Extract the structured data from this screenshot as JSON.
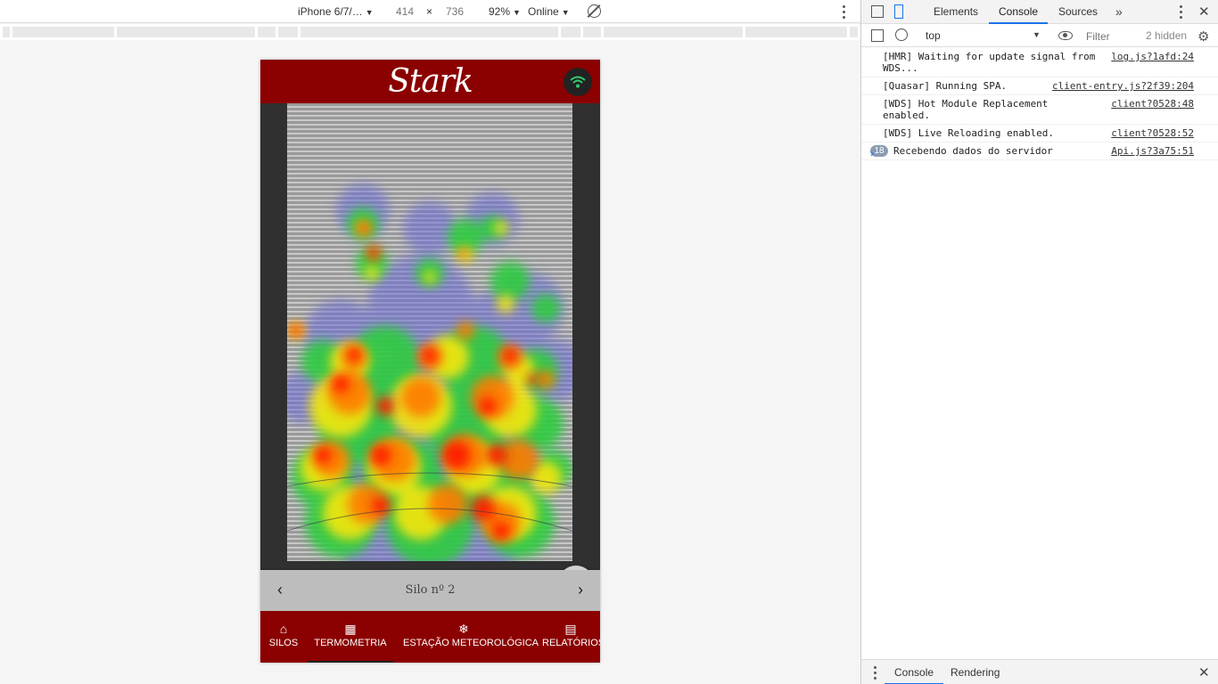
{
  "device_toolbar": {
    "device": "iPhone 6/7/…",
    "width": "414",
    "times": "×",
    "height": "736",
    "zoom": "92%",
    "network": "Online"
  },
  "app": {
    "title": "Stark",
    "silo_label": "Silo nº 2",
    "nav": [
      {
        "icon": "⌂",
        "label": "SILOS"
      },
      {
        "icon": "▦",
        "label": "TERMOMETRIA"
      },
      {
        "icon": "❄",
        "label": "ESTAÇÃO METEOROLÓGICA"
      },
      {
        "icon": "▤",
        "label": "RELATÓRIOS"
      }
    ],
    "active_nav": "TERMOMETRIA"
  },
  "devtools": {
    "tabs": [
      "Elements",
      "Console",
      "Sources"
    ],
    "active_tab": "Console",
    "more": "»",
    "context": "top",
    "filter_placeholder": "Filter",
    "hidden": "2 hidden",
    "logs": [
      {
        "msg": "[HMR] Waiting for update signal from WDS...",
        "src": "log.js?1afd:24"
      },
      {
        "msg": "[Quasar] Running SPA.",
        "src": "client-entry.js?2f39:204"
      },
      {
        "msg": "[WDS] Hot Module Replacement enabled.",
        "src": "client?0528:48"
      },
      {
        "msg": "[WDS] Live Reloading enabled.",
        "src": "client?0528:52"
      },
      {
        "count": "18",
        "msg": "Recebendo dados do servidor",
        "src": "Api.js?3a75:51"
      }
    ],
    "drawer_tabs": [
      "Console",
      "Rendering"
    ]
  },
  "colors": {
    "app_red": "#8b0000",
    "devtools_blue": "#1a73e8"
  }
}
